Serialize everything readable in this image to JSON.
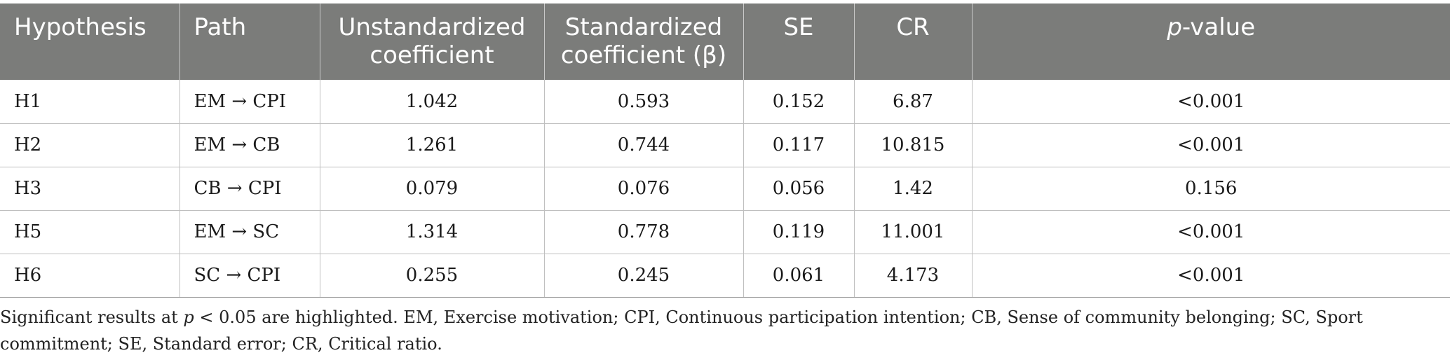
{
  "table": {
    "headers": [
      {
        "key": "hypothesis",
        "label": "Hypothesis"
      },
      {
        "key": "path",
        "label": "Path"
      },
      {
        "key": "unstd",
        "label": "Unstandardized coefficient"
      },
      {
        "key": "std",
        "label": "Standardized coefficient (β)"
      },
      {
        "key": "se",
        "label": "SE"
      },
      {
        "key": "cr",
        "label": "CR"
      },
      {
        "key": "p",
        "label_italic": "p",
        "label_rest": "-value"
      }
    ],
    "rows": [
      {
        "hypothesis": "H1",
        "path": "EM → CPI",
        "unstd": "1.042",
        "std": "0.593",
        "se": "0.152",
        "cr": "6.87",
        "p": "<0.001"
      },
      {
        "hypothesis": "H2",
        "path": "EM → CB",
        "unstd": "1.261",
        "std": "0.744",
        "se": "0.117",
        "cr": "10.815",
        "p": "<0.001"
      },
      {
        "hypothesis": "H3",
        "path": "CB → CPI",
        "unstd": "0.079",
        "std": "0.076",
        "se": "0.056",
        "cr": "1.42",
        "p": "0.156"
      },
      {
        "hypothesis": "H5",
        "path": "EM → SC",
        "unstd": "1.314",
        "std": "0.778",
        "se": "0.119",
        "cr": "11.001",
        "p": "<0.001"
      },
      {
        "hypothesis": "H6",
        "path": "SC → CPI",
        "unstd": "0.255",
        "std": "0.245",
        "se": "0.061",
        "cr": "4.173",
        "p": "<0.001"
      }
    ]
  },
  "footnote": {
    "part1": "Significant results at ",
    "p_italic": "p",
    "part2": " < 0.05 are highlighted. EM, Exercise motivation; CPI, Continuous participation intention; CB, Sense of community belonging; SC, Sport commitment; SE, Standard error; CR, Critical ratio."
  },
  "colors": {
    "header_bg": "#7b7c7a",
    "header_text": "#ffffff",
    "grid_line": "#bfbfbf"
  }
}
